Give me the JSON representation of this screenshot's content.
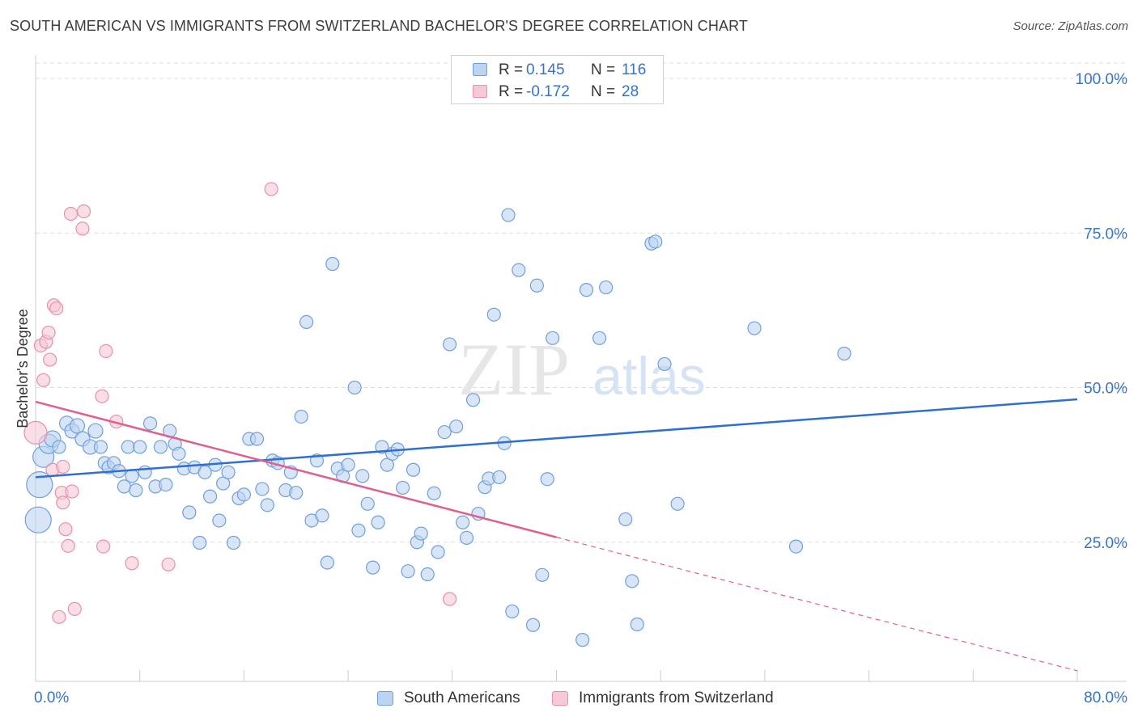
{
  "title": "SOUTH AMERICAN VS IMMIGRANTS FROM SWITZERLAND BACHELOR'S DEGREE CORRELATION CHART",
  "source": "Source: ZipAtlas.com",
  "watermark": {
    "zip": "ZIP",
    "atlas": "atlas"
  },
  "legend": {
    "rows": [
      {
        "r_label": "R =",
        "r_value": "0.145",
        "n_label": "N =",
        "n_value": "116"
      },
      {
        "r_label": "R =",
        "r_value": "-0.172",
        "n_label": "N =",
        "n_value": "28"
      }
    ]
  },
  "colors": {
    "blue_fill": "#bcd4f2",
    "blue_stroke": "#6f9fdc",
    "blue_line": "#2e6fd0",
    "pink_fill": "#f7c8d6",
    "pink_stroke": "#e88fab",
    "pink_line": "#e0608d",
    "axis_label": "#3574c9",
    "grid": "#dddddd"
  },
  "chart_data": {
    "type": "scatter",
    "title": "SOUTH AMERICAN VS IMMIGRANTS FROM SWITZERLAND BACHELOR'S DEGREE CORRELATION CHART",
    "xlabel": "",
    "ylabel": "Bachelor's Degree",
    "xlim": [
      0,
      80
    ],
    "ylim": [
      0,
      104
    ],
    "x_tick_labels": [
      "0.0%",
      "80.0%"
    ],
    "y_ticks": [
      25,
      50,
      75,
      100
    ],
    "y_tick_labels": [
      "25.0%",
      "50.0%",
      "75.0%",
      "100.0%"
    ],
    "grid": true,
    "legend_position": "top-center",
    "series": [
      {
        "name": "South Americans",
        "color": "#6f9fdc",
        "r": 0.145,
        "n": 116,
        "trend": {
          "x": [
            0,
            80
          ],
          "y": [
            35.5,
            48.1
          ]
        },
        "points": [
          [
            0.2,
            28.6,
            16
          ],
          [
            0.3,
            34.3,
            16
          ],
          [
            0.6,
            38.8,
            13
          ],
          [
            1.0,
            40.9,
            12
          ],
          [
            1.3,
            41.7,
            10
          ],
          [
            1.8,
            40.4,
            8
          ],
          [
            2.4,
            44.2,
            9
          ],
          [
            2.8,
            43.0,
            9
          ],
          [
            3.2,
            43.8,
            9
          ],
          [
            3.6,
            41.7,
            9
          ],
          [
            4.2,
            40.4,
            9
          ],
          [
            4.6,
            43.0,
            9
          ],
          [
            5.0,
            40.4,
            8
          ],
          [
            5.3,
            37.8,
            8
          ],
          [
            5.6,
            37.1,
            8
          ],
          [
            6.0,
            37.8,
            8
          ],
          [
            6.4,
            36.5,
            8
          ],
          [
            6.8,
            34.0,
            8
          ],
          [
            7.1,
            40.4,
            8
          ],
          [
            7.4,
            35.7,
            8
          ],
          [
            7.7,
            33.4,
            8
          ],
          [
            8.0,
            40.4,
            8
          ],
          [
            8.4,
            36.3,
            8
          ],
          [
            8.8,
            44.2,
            8
          ],
          [
            9.2,
            34.0,
            8
          ],
          [
            9.6,
            40.4,
            8
          ],
          [
            10.0,
            34.3,
            8
          ],
          [
            10.3,
            43.0,
            8
          ],
          [
            10.7,
            40.9,
            8
          ],
          [
            11.0,
            39.3,
            8
          ],
          [
            11.4,
            36.9,
            8
          ],
          [
            11.8,
            29.8,
            8
          ],
          [
            12.2,
            37.1,
            8
          ],
          [
            12.6,
            24.9,
            8
          ],
          [
            13.0,
            36.3,
            8
          ],
          [
            13.4,
            32.4,
            8
          ],
          [
            13.8,
            37.5,
            8
          ],
          [
            14.1,
            28.5,
            8
          ],
          [
            14.4,
            34.5,
            8
          ],
          [
            14.8,
            36.3,
            8
          ],
          [
            15.2,
            24.9,
            8
          ],
          [
            15.6,
            32.1,
            8
          ],
          [
            16.0,
            32.7,
            8
          ],
          [
            16.4,
            41.7,
            8
          ],
          [
            17.0,
            41.7,
            8
          ],
          [
            17.4,
            33.6,
            8
          ],
          [
            17.8,
            31.0,
            8
          ],
          [
            18.2,
            38.2,
            8
          ],
          [
            18.6,
            37.8,
            8
          ],
          [
            19.2,
            33.4,
            8
          ],
          [
            19.6,
            36.3,
            8
          ],
          [
            20.0,
            33.0,
            8
          ],
          [
            20.4,
            45.3,
            8
          ],
          [
            20.8,
            60.6,
            8
          ],
          [
            21.2,
            28.5,
            8
          ],
          [
            21.6,
            38.2,
            8
          ],
          [
            22.0,
            29.3,
            8
          ],
          [
            22.4,
            21.7,
            8
          ],
          [
            22.8,
            70.0,
            8
          ],
          [
            23.2,
            36.9,
            8
          ],
          [
            23.6,
            35.7,
            8
          ],
          [
            24.0,
            37.5,
            8
          ],
          [
            24.5,
            50.0,
            8
          ],
          [
            24.8,
            26.9,
            8
          ],
          [
            25.1,
            35.7,
            8
          ],
          [
            25.5,
            31.2,
            8
          ],
          [
            25.9,
            20.9,
            8
          ],
          [
            26.3,
            28.2,
            8
          ],
          [
            26.6,
            40.4,
            8
          ],
          [
            27.0,
            37.5,
            8
          ],
          [
            27.4,
            39.3,
            8
          ],
          [
            27.8,
            40.0,
            8
          ],
          [
            28.2,
            33.8,
            8
          ],
          [
            28.6,
            20.3,
            8
          ],
          [
            29.0,
            36.7,
            8
          ],
          [
            29.3,
            25.0,
            8
          ],
          [
            29.6,
            26.4,
            8
          ],
          [
            30.1,
            19.8,
            8
          ],
          [
            30.6,
            32.9,
            8
          ],
          [
            30.9,
            23.4,
            8
          ],
          [
            31.4,
            42.8,
            8
          ],
          [
            31.8,
            57.0,
            8
          ],
          [
            32.3,
            43.7,
            8
          ],
          [
            32.8,
            28.2,
            8
          ],
          [
            33.1,
            25.7,
            8
          ],
          [
            33.6,
            48.0,
            8
          ],
          [
            34.0,
            29.6,
            8
          ],
          [
            34.5,
            33.9,
            8
          ],
          [
            34.8,
            35.3,
            8
          ],
          [
            35.2,
            61.8,
            8
          ],
          [
            35.6,
            35.5,
            8
          ],
          [
            36.0,
            41.0,
            8
          ],
          [
            36.3,
            77.9,
            8
          ],
          [
            36.6,
            13.8,
            8
          ],
          [
            37.1,
            69.0,
            8
          ],
          [
            38.2,
            11.6,
            8
          ],
          [
            38.5,
            66.5,
            8
          ],
          [
            39.3,
            35.2,
            8
          ],
          [
            39.7,
            58.0,
            8
          ],
          [
            42.0,
            9.2,
            8
          ],
          [
            42.3,
            65.8,
            8
          ],
          [
            43.3,
            58.0,
            8
          ],
          [
            43.8,
            66.2,
            8
          ],
          [
            38.9,
            19.7,
            8
          ],
          [
            46.2,
            11.7,
            8
          ],
          [
            45.3,
            28.7,
            8
          ],
          [
            45.8,
            18.7,
            8
          ],
          [
            47.3,
            73.3,
            8
          ],
          [
            47.6,
            73.6,
            8
          ],
          [
            48.3,
            53.8,
            8
          ],
          [
            49.3,
            31.2,
            8
          ],
          [
            55.2,
            59.6,
            8
          ],
          [
            58.4,
            24.3,
            8
          ],
          [
            62.1,
            55.5,
            8
          ]
        ]
      },
      {
        "name": "Immigrants from Switzerland",
        "color": "#e88fab",
        "r": -0.172,
        "n": 28,
        "trend": {
          "x": [
            0,
            40
          ],
          "y": [
            47.7,
            25.8
          ]
        },
        "trend_dashed": {
          "x": [
            40,
            80
          ],
          "y": [
            25.8,
            4.2
          ]
        },
        "points": [
          [
            0.0,
            42.7,
            14
          ],
          [
            0.4,
            56.8,
            8
          ],
          [
            0.6,
            51.2,
            8
          ],
          [
            0.8,
            57.4,
            8
          ],
          [
            1.0,
            58.9,
            8
          ],
          [
            1.1,
            54.5,
            8
          ],
          [
            1.3,
            36.7,
            8
          ],
          [
            1.4,
            63.3,
            8
          ],
          [
            1.6,
            62.8,
            8
          ],
          [
            1.8,
            12.9,
            8
          ],
          [
            2.0,
            33.0,
            8
          ],
          [
            2.1,
            31.4,
            8
          ],
          [
            2.3,
            27.1,
            8
          ],
          [
            2.5,
            24.4,
            8
          ],
          [
            2.7,
            78.1,
            8
          ],
          [
            2.8,
            33.2,
            8
          ],
          [
            3.0,
            14.2,
            8
          ],
          [
            3.6,
            75.7,
            8
          ],
          [
            3.7,
            78.5,
            8
          ],
          [
            5.1,
            48.6,
            8
          ],
          [
            5.2,
            24.3,
            8
          ],
          [
            5.4,
            55.9,
            8
          ],
          [
            6.2,
            44.5,
            8
          ],
          [
            7.4,
            21.6,
            8
          ],
          [
            10.2,
            21.4,
            8
          ],
          [
            18.1,
            82.1,
            8
          ],
          [
            31.8,
            15.8,
            8
          ],
          [
            2.1,
            37.2,
            8
          ]
        ]
      }
    ]
  }
}
